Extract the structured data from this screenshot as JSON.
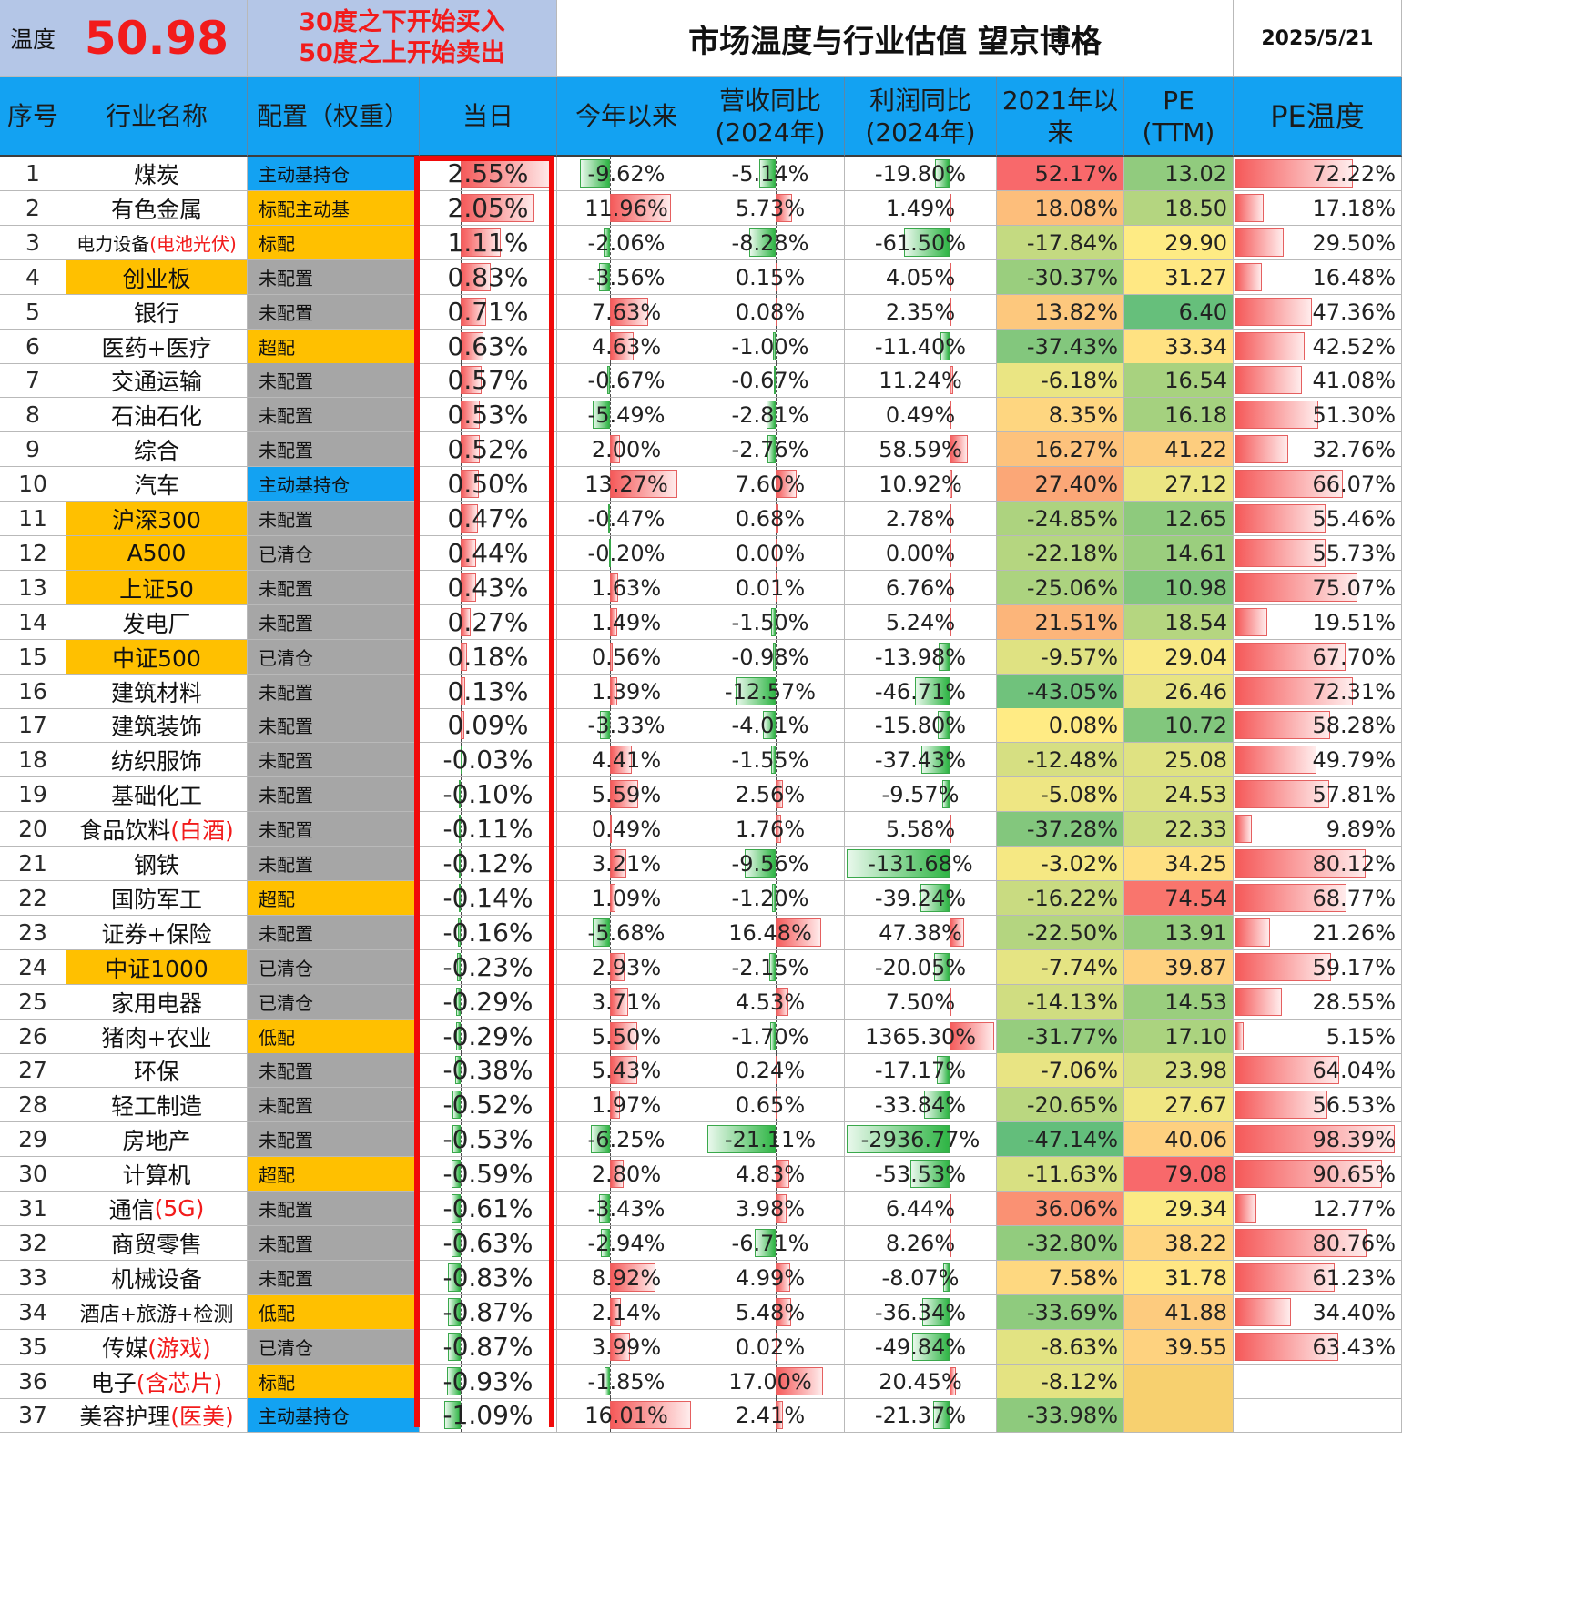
{
  "header": {
    "temp_label": "温度",
    "temp_value": "50.98",
    "rule_line1": "30度之下开始买入",
    "rule_line2": "50度之上开始卖出",
    "title": "市场温度与行业估值 望京博格",
    "date": "2025/5/21"
  },
  "columns": {
    "idx": "序号",
    "name": "行业名称",
    "alloc": "配置（权重）",
    "day": "当日",
    "ytd": "今年以来",
    "rev_line1": "营收同比",
    "rev_line2": "(2024年)",
    "profit_line1": "利润同比",
    "profit_line2": "(2024年)",
    "since_line1": "2021年以",
    "since_line2": "来",
    "pe_line1": "PE",
    "pe_line2": "(TTM)",
    "pe_temp": "PE温度"
  },
  "colors": {
    "header_blue": "#13a2f2",
    "header_lavender": "#b4c6e7",
    "orange": "#ffc000",
    "gray": "#a6a6a6",
    "blue": "#13a2f2",
    "red_text": "#f21b1b"
  },
  "rows": [
    {
      "idx": "1",
      "name": "煤炭",
      "name_red": "",
      "name_bg": "",
      "alloc": "主动基持仓",
      "alloc_bg": "blue",
      "day": "2.55%",
      "ytd": "-9.62%",
      "rev": "-5.14%",
      "profit": "-19.80%",
      "since": "52.17%",
      "pe": "13.02",
      "pe_temp": "72.22%"
    },
    {
      "idx": "2",
      "name": "有色金属",
      "name_red": "",
      "name_bg": "",
      "alloc": "标配主动基",
      "alloc_bg": "orange",
      "day": "2.05%",
      "ytd": "11.96%",
      "rev": "5.73%",
      "profit": "1.49%",
      "since": "18.08%",
      "pe": "18.50",
      "pe_temp": "17.18%"
    },
    {
      "idx": "3",
      "name": "电力设备",
      "name_red": "(电池光伏)",
      "name_bg": "",
      "alloc": "标配",
      "alloc_bg": "orange",
      "day": "1.11%",
      "ytd": "-2.06%",
      "rev": "-8.28%",
      "profit": "-61.50%",
      "since": "-17.84%",
      "pe": "29.90",
      "pe_temp": "29.50%"
    },
    {
      "idx": "4",
      "name": "创业板",
      "name_red": "",
      "name_bg": "orange",
      "alloc": "未配置",
      "alloc_bg": "gray",
      "day": "0.83%",
      "ytd": "-3.56%",
      "rev": "0.15%",
      "profit": "4.05%",
      "since": "-30.37%",
      "pe": "31.27",
      "pe_temp": "16.48%"
    },
    {
      "idx": "5",
      "name": "银行",
      "name_red": "",
      "name_bg": "",
      "alloc": "未配置",
      "alloc_bg": "gray",
      "day": "0.71%",
      "ytd": "7.63%",
      "rev": "0.08%",
      "profit": "2.35%",
      "since": "13.82%",
      "pe": "6.40",
      "pe_temp": "47.36%"
    },
    {
      "idx": "6",
      "name": "医药+医疗",
      "name_red": "",
      "name_bg": "",
      "alloc": "超配",
      "alloc_bg": "orange",
      "day": "0.63%",
      "ytd": "4.63%",
      "rev": "-1.00%",
      "profit": "-11.40%",
      "since": "-37.43%",
      "pe": "33.34",
      "pe_temp": "42.52%"
    },
    {
      "idx": "7",
      "name": "交通运输",
      "name_red": "",
      "name_bg": "",
      "alloc": "未配置",
      "alloc_bg": "gray",
      "day": "0.57%",
      "ytd": "-0.67%",
      "rev": "-0.67%",
      "profit": "11.24%",
      "since": "-6.18%",
      "pe": "16.54",
      "pe_temp": "41.08%"
    },
    {
      "idx": "8",
      "name": "石油石化",
      "name_red": "",
      "name_bg": "",
      "alloc": "未配置",
      "alloc_bg": "gray",
      "day": "0.53%",
      "ytd": "-5.49%",
      "rev": "-2.81%",
      "profit": "0.49%",
      "since": "8.35%",
      "pe": "16.18",
      "pe_temp": "51.30%"
    },
    {
      "idx": "9",
      "name": "综合",
      "name_red": "",
      "name_bg": "",
      "alloc": "未配置",
      "alloc_bg": "gray",
      "day": "0.52%",
      "ytd": "2.00%",
      "rev": "-2.76%",
      "profit": "58.59%",
      "since": "16.27%",
      "pe": "41.22",
      "pe_temp": "32.76%"
    },
    {
      "idx": "10",
      "name": "汽车",
      "name_red": "",
      "name_bg": "",
      "alloc": "主动基持仓",
      "alloc_bg": "blue",
      "day": "0.50%",
      "ytd": "13.27%",
      "rev": "7.60%",
      "profit": "10.92%",
      "since": "27.40%",
      "pe": "27.12",
      "pe_temp": "66.07%"
    },
    {
      "idx": "11",
      "name": "沪深300",
      "name_red": "",
      "name_bg": "orange",
      "alloc": "未配置",
      "alloc_bg": "gray",
      "day": "0.47%",
      "ytd": "-0.47%",
      "rev": "0.68%",
      "profit": "2.78%",
      "since": "-24.85%",
      "pe": "12.65",
      "pe_temp": "55.46%"
    },
    {
      "idx": "12",
      "name": "A500",
      "name_red": "",
      "name_bg": "orange",
      "alloc": "已清仓",
      "alloc_bg": "gray",
      "day": "0.44%",
      "ytd": "-0.20%",
      "rev": "0.00%",
      "profit": "0.00%",
      "since": "-22.18%",
      "pe": "14.61",
      "pe_temp": "55.73%"
    },
    {
      "idx": "13",
      "name": "上证50",
      "name_red": "",
      "name_bg": "orange",
      "alloc": "未配置",
      "alloc_bg": "gray",
      "day": "0.43%",
      "ytd": "1.63%",
      "rev": "0.01%",
      "profit": "6.76%",
      "since": "-25.06%",
      "pe": "10.98",
      "pe_temp": "75.07%"
    },
    {
      "idx": "14",
      "name": "发电厂",
      "name_red": "",
      "name_bg": "",
      "alloc": "未配置",
      "alloc_bg": "gray",
      "day": "0.27%",
      "ytd": "1.49%",
      "rev": "-1.50%",
      "profit": "5.24%",
      "since": "21.51%",
      "pe": "18.54",
      "pe_temp": "19.51%"
    },
    {
      "idx": "15",
      "name": "中证500",
      "name_red": "",
      "name_bg": "orange",
      "alloc": "已清仓",
      "alloc_bg": "gray",
      "day": "0.18%",
      "ytd": "0.56%",
      "rev": "-0.98%",
      "profit": "-13.98%",
      "since": "-9.57%",
      "pe": "29.04",
      "pe_temp": "67.70%"
    },
    {
      "idx": "16",
      "name": "建筑材料",
      "name_red": "",
      "name_bg": "",
      "alloc": "未配置",
      "alloc_bg": "gray",
      "day": "0.13%",
      "ytd": "1.39%",
      "rev": "-12.57%",
      "profit": "-46.71%",
      "since": "-43.05%",
      "pe": "26.46",
      "pe_temp": "72.31%"
    },
    {
      "idx": "17",
      "name": "建筑装饰",
      "name_red": "",
      "name_bg": "",
      "alloc": "未配置",
      "alloc_bg": "gray",
      "day": "0.09%",
      "ytd": "-3.33%",
      "rev": "-4.01%",
      "profit": "-15.80%",
      "since": "0.08%",
      "pe": "10.72",
      "pe_temp": "58.28%"
    },
    {
      "idx": "18",
      "name": "纺织服饰",
      "name_red": "",
      "name_bg": "",
      "alloc": "未配置",
      "alloc_bg": "gray",
      "day": "-0.03%",
      "ytd": "4.41%",
      "rev": "-1.55%",
      "profit": "-37.43%",
      "since": "-12.48%",
      "pe": "25.08",
      "pe_temp": "49.79%"
    },
    {
      "idx": "19",
      "name": "基础化工",
      "name_red": "",
      "name_bg": "",
      "alloc": "未配置",
      "alloc_bg": "gray",
      "day": "-0.10%",
      "ytd": "5.59%",
      "rev": "2.56%",
      "profit": "-9.57%",
      "since": "-5.08%",
      "pe": "24.53",
      "pe_temp": "57.81%"
    },
    {
      "idx": "20",
      "name": "食品饮料",
      "name_red": "(白酒)",
      "name_bg": "",
      "alloc": "未配置",
      "alloc_bg": "gray",
      "day": "-0.11%",
      "ytd": "0.49%",
      "rev": "1.76%",
      "profit": "5.58%",
      "since": "-37.28%",
      "pe": "22.33",
      "pe_temp": "9.89%"
    },
    {
      "idx": "21",
      "name": "钢铁",
      "name_red": "",
      "name_bg": "",
      "alloc": "未配置",
      "alloc_bg": "gray",
      "day": "-0.12%",
      "ytd": "3.21%",
      "rev": "-9.56%",
      "profit": "-131.68%",
      "since": "-3.02%",
      "pe": "34.25",
      "pe_temp": "80.12%"
    },
    {
      "idx": "22",
      "name": "国防军工",
      "name_red": "",
      "name_bg": "",
      "alloc": "超配",
      "alloc_bg": "orange",
      "day": "-0.14%",
      "ytd": "1.09%",
      "rev": "-1.20%",
      "profit": "-39.24%",
      "since": "-16.22%",
      "pe": "74.54",
      "pe_temp": "68.77%"
    },
    {
      "idx": "23",
      "name": "证券+保险",
      "name_red": "",
      "name_bg": "",
      "alloc": "未配置",
      "alloc_bg": "gray",
      "day": "-0.16%",
      "ytd": "-5.68%",
      "rev": "16.48%",
      "profit": "47.38%",
      "since": "-22.50%",
      "pe": "13.91",
      "pe_temp": "21.26%"
    },
    {
      "idx": "24",
      "name": "中证1000",
      "name_red": "",
      "name_bg": "orange",
      "alloc": "已清仓",
      "alloc_bg": "gray",
      "day": "-0.23%",
      "ytd": "2.93%",
      "rev": "-2.15%",
      "profit": "-20.05%",
      "since": "-7.74%",
      "pe": "39.87",
      "pe_temp": "59.17%"
    },
    {
      "idx": "25",
      "name": "家用电器",
      "name_red": "",
      "name_bg": "",
      "alloc": "已清仓",
      "alloc_bg": "gray",
      "day": "-0.29%",
      "ytd": "3.71%",
      "rev": "4.53%",
      "profit": "7.50%",
      "since": "-14.13%",
      "pe": "14.53",
      "pe_temp": "28.55%"
    },
    {
      "idx": "26",
      "name": "猪肉+农业",
      "name_red": "",
      "name_bg": "",
      "alloc": "低配",
      "alloc_bg": "orange",
      "day": "-0.29%",
      "ytd": "5.50%",
      "rev": "-1.70%",
      "profit": "1365.30%",
      "since": "-31.77%",
      "pe": "17.10",
      "pe_temp": "5.15%"
    },
    {
      "idx": "27",
      "name": "环保",
      "name_red": "",
      "name_bg": "",
      "alloc": "未配置",
      "alloc_bg": "gray",
      "day": "-0.38%",
      "ytd": "5.43%",
      "rev": "0.24%",
      "profit": "-17.17%",
      "since": "-7.06%",
      "pe": "23.98",
      "pe_temp": "64.04%"
    },
    {
      "idx": "28",
      "name": "轻工制造",
      "name_red": "",
      "name_bg": "",
      "alloc": "未配置",
      "alloc_bg": "gray",
      "day": "-0.52%",
      "ytd": "1.97%",
      "rev": "0.65%",
      "profit": "-33.84%",
      "since": "-20.65%",
      "pe": "27.67",
      "pe_temp": "56.53%"
    },
    {
      "idx": "29",
      "name": "房地产",
      "name_red": "",
      "name_bg": "",
      "alloc": "未配置",
      "alloc_bg": "gray",
      "day": "-0.53%",
      "ytd": "-6.25%",
      "rev": "-21.11%",
      "profit": "-2936.77%",
      "since": "-47.14%",
      "pe": "40.06",
      "pe_temp": "98.39%"
    },
    {
      "idx": "30",
      "name": "计算机",
      "name_red": "",
      "name_bg": "",
      "alloc": "超配",
      "alloc_bg": "orange",
      "day": "-0.59%",
      "ytd": "2.80%",
      "rev": "4.83%",
      "profit": "-53.53%",
      "since": "-11.63%",
      "pe": "79.08",
      "pe_temp": "90.65%"
    },
    {
      "idx": "31",
      "name": "通信",
      "name_red": "(5G)",
      "name_bg": "",
      "alloc": "未配置",
      "alloc_bg": "gray",
      "day": "-0.61%",
      "ytd": "-3.43%",
      "rev": "3.98%",
      "profit": "6.44%",
      "since": "36.06%",
      "pe": "29.34",
      "pe_temp": "12.77%"
    },
    {
      "idx": "32",
      "name": "商贸零售",
      "name_red": "",
      "name_bg": "",
      "alloc": "未配置",
      "alloc_bg": "gray",
      "day": "-0.63%",
      "ytd": "-2.94%",
      "rev": "-6.71%",
      "profit": "8.26%",
      "since": "-32.80%",
      "pe": "38.22",
      "pe_temp": "80.76%"
    },
    {
      "idx": "33",
      "name": "机械设备",
      "name_red": "",
      "name_bg": "",
      "alloc": "未配置",
      "alloc_bg": "gray",
      "day": "-0.83%",
      "ytd": "8.92%",
      "rev": "4.99%",
      "profit": "-8.07%",
      "since": "7.58%",
      "pe": "31.78",
      "pe_temp": "61.23%"
    },
    {
      "idx": "34",
      "name": "酒店+旅游+检测",
      "name_red": "",
      "name_bg": "",
      "alloc": "低配",
      "alloc_bg": "orange",
      "day": "-0.87%",
      "ytd": "2.14%",
      "rev": "5.48%",
      "profit": "-36.34%",
      "since": "-33.69%",
      "pe": "41.88",
      "pe_temp": "34.40%"
    },
    {
      "idx": "35",
      "name": "传媒",
      "name_red": "(游戏)",
      "name_bg": "",
      "alloc": "已清仓",
      "alloc_bg": "gray",
      "day": "-0.87%",
      "ytd": "3.99%",
      "rev": "0.02%",
      "profit": "-49.84%",
      "since": "-8.63%",
      "pe": "39.55",
      "pe_temp": "63.43%"
    },
    {
      "idx": "36",
      "name": "电子",
      "name_red": "(含芯片)",
      "name_bg": "",
      "alloc": "标配",
      "alloc_bg": "orange",
      "day": "-0.93%",
      "ytd": "-1.85%",
      "rev": "17.00%",
      "profit": "20.45%",
      "since": "-8.12%",
      "pe": "",
      "pe_temp": ""
    },
    {
      "idx": "37",
      "name": "美容护理",
      "name_red": "(医美)",
      "name_bg": "",
      "alloc": "主动基持仓",
      "alloc_bg": "blue",
      "day": "-1.09%",
      "ytd": "16.01%",
      "rev": "2.41%",
      "profit": "-21.37%",
      "since": "-33.98%",
      "pe": "",
      "pe_temp": ""
    }
  ]
}
